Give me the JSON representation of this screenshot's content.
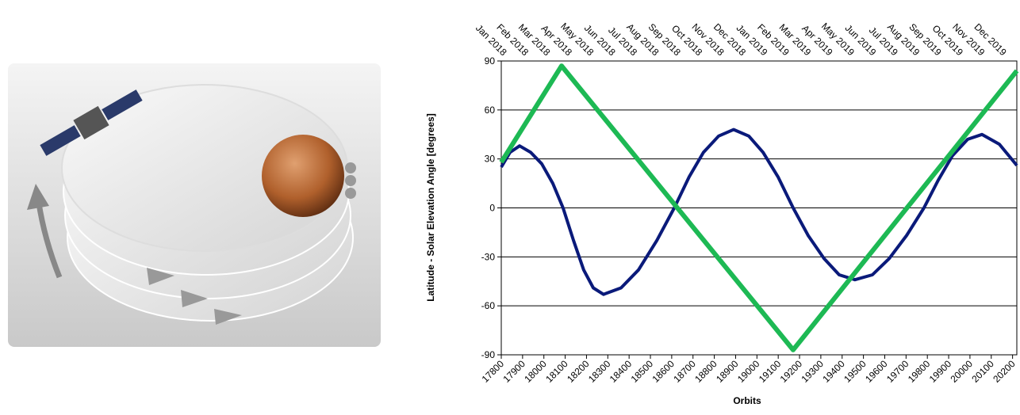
{
  "chart_data": {
    "type": "line",
    "x_label": "Orbits",
    "y_label": "Latitude - Solar Elevation Angle [degrees]",
    "x2_categories": [
      "Jan 2018",
      "Feb 2018",
      "Mar 2018",
      "Apr 2018",
      "May 2018",
      "Jun 2018",
      "Jul 2018",
      "Aug 2018",
      "Sep 2018",
      "Oct 2018",
      "Nov 2018",
      "Dec 2018",
      "Jan 2019",
      "Feb 2019",
      "Mar 2019",
      "Apr 2019",
      "May 2019",
      "Jun 2019",
      "Jul 2019",
      "Aug 2019",
      "Sep 2019",
      "Oct 2019",
      "Nov 2019",
      "Dec 2019"
    ],
    "xlim": [
      17800,
      20220
    ],
    "xticks": [
      17800,
      17900,
      18000,
      18100,
      18200,
      18300,
      18400,
      18500,
      18600,
      18700,
      18800,
      18900,
      19000,
      19100,
      19200,
      19300,
      19400,
      19500,
      19600,
      19700,
      19800,
      19900,
      20000,
      20100,
      20200
    ],
    "ylim": [
      -90,
      90
    ],
    "yticks": [
      -90,
      -60,
      -30,
      0,
      30,
      60,
      90
    ],
    "grid": true,
    "series": [
      {
        "color": "#0a1a7a",
        "x": [
          17800,
          17841,
          17886,
          17938,
          17990,
          18042,
          18090,
          18139,
          18187,
          18232,
          18280,
          18362,
          18444,
          18530,
          18612,
          18682,
          18749,
          18820,
          18891,
          18962,
          19029,
          19099,
          19170,
          19241,
          19315,
          19386,
          19460,
          19542,
          19621,
          19702,
          19784,
          19851,
          19918,
          19989,
          20056,
          20138,
          20220
        ],
        "values": [
          25,
          34,
          38,
          34,
          27,
          15,
          0,
          -20,
          -38,
          -49,
          -53,
          -49,
          -38,
          -20,
          0,
          19,
          34,
          44,
          48,
          44,
          34,
          19,
          0,
          -17,
          -31,
          -41,
          -44,
          -41,
          -31,
          -17,
          0,
          17,
          32,
          42,
          45,
          39,
          26
        ]
      },
      {
        "color": "#1db954",
        "x": [
          17800,
          18083,
          19170,
          20220
        ],
        "values": [
          28,
          87,
          -87,
          84
        ]
      }
    ]
  }
}
